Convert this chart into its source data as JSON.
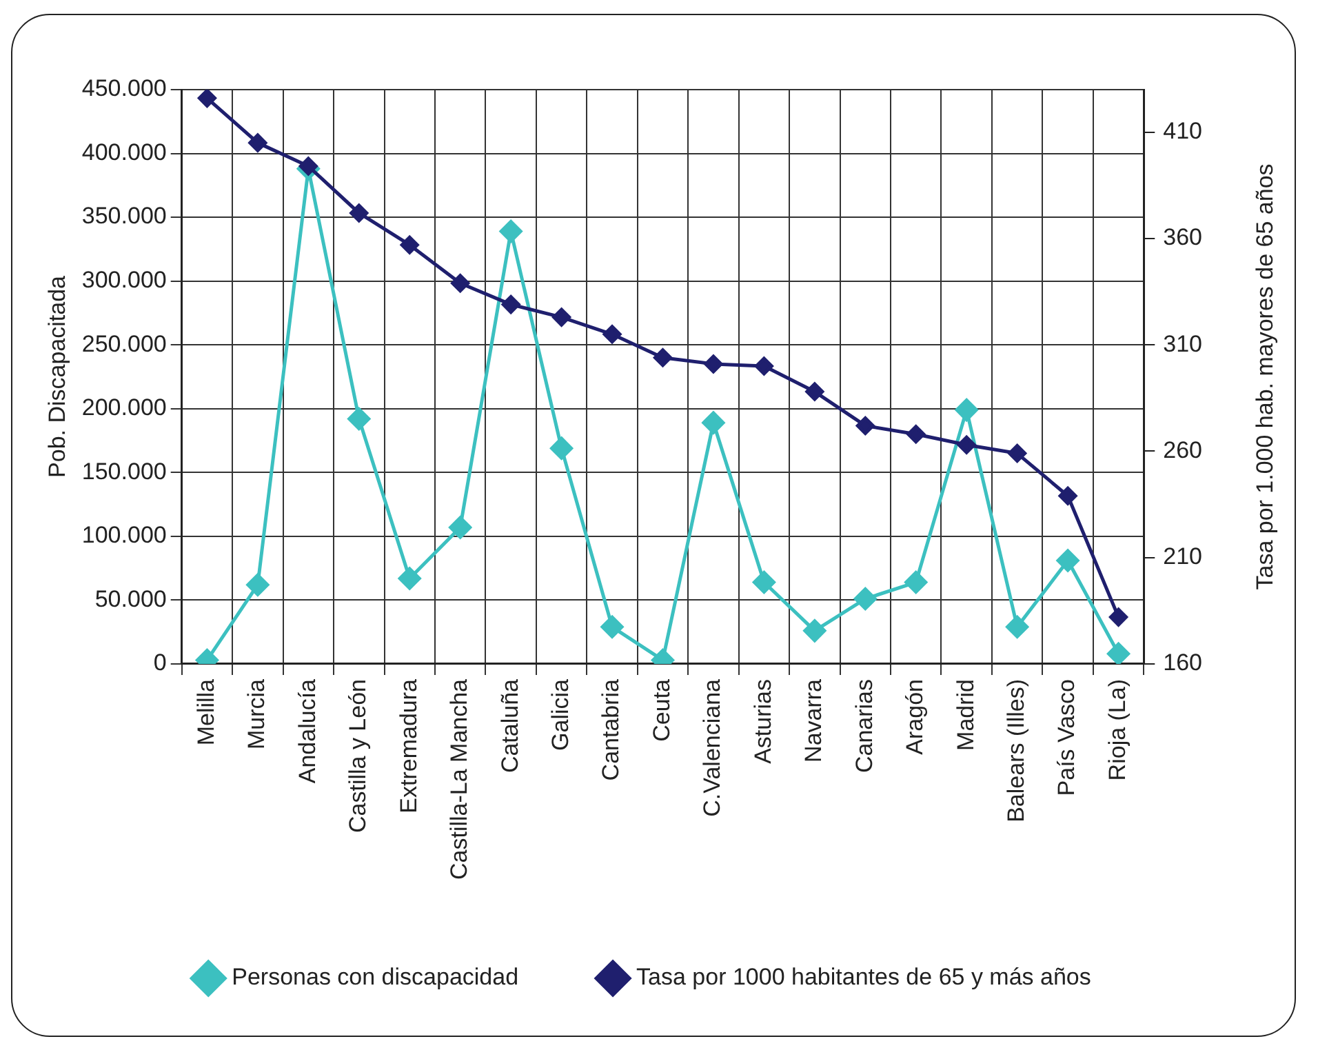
{
  "chart_data": {
    "type": "line",
    "ylabel": "Pob. Discapacitada",
    "y2label": "Tasa por 1.000 hab. mayores de 65 años",
    "categories": [
      "Melilla",
      "Murcia",
      "Andalucía",
      "Castilla y León",
      "Extremadura",
      "Castilla-La Mancha",
      "Cataluña",
      "Galicia",
      "Cantabria",
      "Ceuta",
      "C.Valenciana",
      "Asturias",
      "Navarra",
      "Canarias",
      "Aragón",
      "Madrid",
      "Balears (Illes)",
      "País Vasco",
      "Rioja (La)"
    ],
    "series": [
      {
        "name": "Personas con discapacidad",
        "color": "#3cc0c0",
        "values": [
          3000,
          62000,
          388000,
          192000,
          67000,
          107000,
          339000,
          169000,
          29000,
          3000,
          189000,
          64000,
          26000,
          51000,
          64000,
          199000,
          29000,
          81000,
          8000
        ]
      },
      {
        "name": "Tasa por 1000 habitantes de 65 y más años",
        "color": "#1f1f6e",
        "axis": "y2",
        "values": [
          426,
          405,
          394,
          372,
          357,
          339,
          329,
          323,
          315,
          304,
          301,
          300,
          288,
          272,
          268,
          263,
          259,
          239,
          182
        ]
      }
    ],
    "ylim": [
      0,
      450000
    ],
    "yticks": [
      {
        "value": 0,
        "label": "0"
      },
      {
        "value": 50000,
        "label": "50.000"
      },
      {
        "value": 100000,
        "label": "100.000"
      },
      {
        "value": 150000,
        "label": "150.000"
      },
      {
        "value": 200000,
        "label": "200.000"
      },
      {
        "value": 250000,
        "label": "250.000"
      },
      {
        "value": 300000,
        "label": "300.000"
      },
      {
        "value": 350000,
        "label": "350.000"
      },
      {
        "value": 400000,
        "label": "400.000"
      },
      {
        "value": 450000,
        "label": "450.000"
      }
    ],
    "y2lim": [
      160,
      430
    ],
    "y2ticks": [
      160,
      210,
      260,
      310,
      360,
      410
    ],
    "grid": true,
    "legend": "bottom",
    "marker": "diamond",
    "line_style": "solid"
  }
}
